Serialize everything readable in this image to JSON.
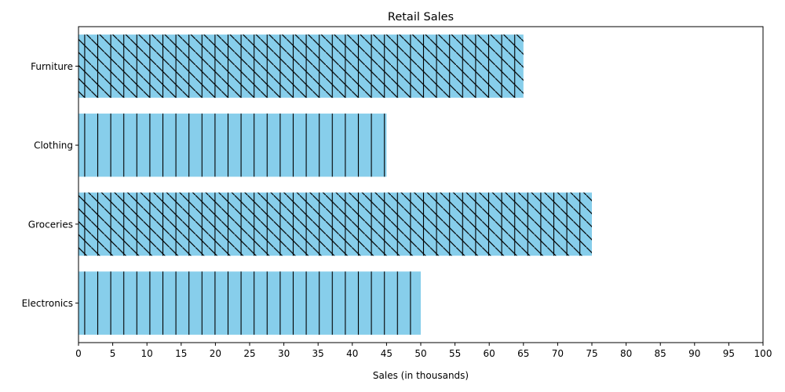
{
  "chart_data": {
    "type": "bar",
    "orientation": "horizontal",
    "title": "Retail Sales",
    "xlabel": "Sales (in thousands)",
    "ylabel": "",
    "categories": [
      "Electronics",
      "Groceries",
      "Clothing",
      "Furniture"
    ],
    "values": [
      50,
      75,
      45,
      65
    ],
    "hatches": [
      "|",
      "|\\",
      "|",
      "|\\"
    ],
    "xlim": [
      0,
      100
    ],
    "xticks": [
      0,
      5,
      10,
      15,
      20,
      25,
      30,
      35,
      40,
      45,
      50,
      55,
      60,
      65,
      70,
      75,
      80,
      85,
      90,
      95,
      100
    ],
    "bar_color": "#87ceeb",
    "edge_color": "#000000",
    "grid": false,
    "legend": "none"
  }
}
